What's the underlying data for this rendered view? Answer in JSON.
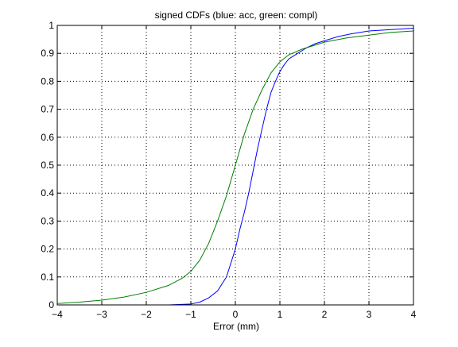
{
  "chart_data": {
    "type": "line",
    "title": "signed CDFs (blue: acc, green: compl)",
    "xlabel": "Error (mm)",
    "ylabel": "",
    "xlim": [
      -4,
      4
    ],
    "ylim": [
      0,
      1
    ],
    "xticks": [
      -4,
      -3,
      -2,
      -1,
      0,
      1,
      2,
      3,
      4
    ],
    "yticks": [
      0,
      0.1,
      0.2,
      0.3,
      0.4,
      0.5,
      0.6,
      0.7,
      0.8,
      0.9,
      1
    ],
    "xtick_labels": [
      "−4",
      "−3",
      "−2",
      "−1",
      "0",
      "1",
      "2",
      "3",
      "4"
    ],
    "ytick_labels": [
      "0",
      "0.1",
      "0.2",
      "0.3",
      "0.4",
      "0.5",
      "0.6",
      "0.7",
      "0.8",
      "0.9",
      "1"
    ],
    "grid": true,
    "series": [
      {
        "color": "#0000ff",
        "x": [
          -2.2,
          -1.5,
          -1.0,
          -0.8,
          -0.6,
          -0.4,
          -0.2,
          0.0,
          0.1,
          0.2,
          0.3,
          0.4,
          0.5,
          0.6,
          0.7,
          0.8,
          0.9,
          1.0,
          1.1,
          1.2,
          1.4,
          1.6,
          1.8,
          2.0,
          2.3,
          2.6,
          3.0,
          3.5,
          4.0
        ],
        "y": [
          0.0,
          0.0,
          0.003,
          0.01,
          0.025,
          0.05,
          0.1,
          0.2,
          0.27,
          0.33,
          0.4,
          0.48,
          0.56,
          0.63,
          0.7,
          0.76,
          0.8,
          0.835,
          0.86,
          0.88,
          0.9,
          0.92,
          0.935,
          0.945,
          0.96,
          0.97,
          0.98,
          0.985,
          0.99
        ]
      },
      {
        "color": "#008000",
        "x": [
          -4.0,
          -3.5,
          -3.0,
          -2.5,
          -2.0,
          -1.5,
          -1.2,
          -1.0,
          -0.8,
          -0.6,
          -0.4,
          -0.2,
          0.0,
          0.2,
          0.4,
          0.6,
          0.8,
          1.0,
          1.2,
          1.5,
          1.8,
          2.0,
          2.5,
          3.0,
          3.5,
          4.0
        ],
        "y": [
          0.005,
          0.01,
          0.017,
          0.028,
          0.045,
          0.07,
          0.095,
          0.12,
          0.16,
          0.22,
          0.3,
          0.39,
          0.5,
          0.61,
          0.7,
          0.77,
          0.83,
          0.87,
          0.895,
          0.915,
          0.93,
          0.94,
          0.955,
          0.965,
          0.975,
          0.98
        ]
      }
    ]
  }
}
